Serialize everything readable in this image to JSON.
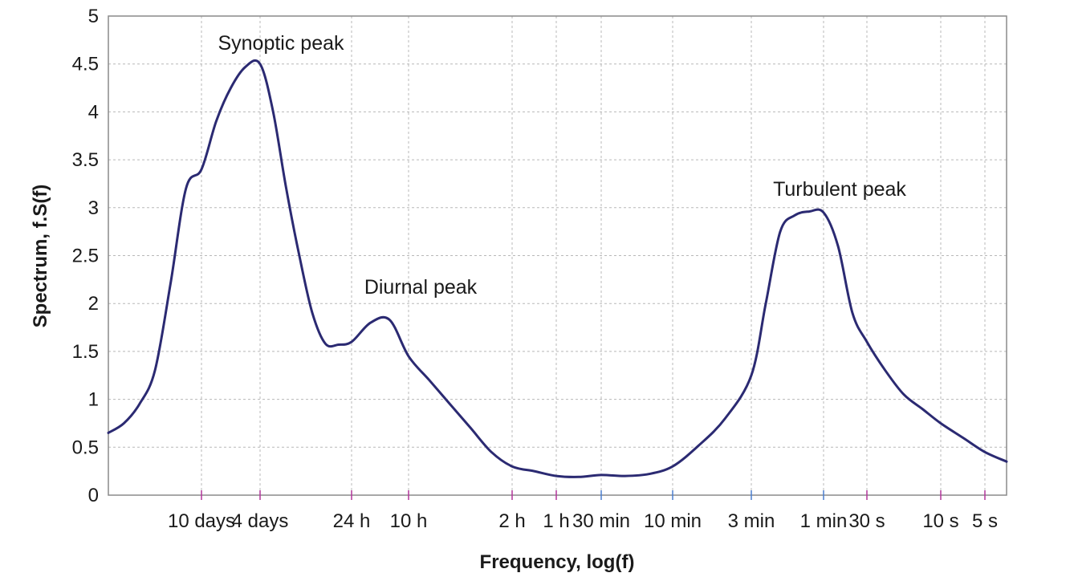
{
  "chart_data": {
    "type": "line",
    "title": "",
    "xlabel": "Frequency, log(f)",
    "ylabel": "Spectrum, f.S(f)",
    "x_scale": "log",
    "ylim": [
      0,
      5
    ],
    "yticks": [
      {
        "value": 0,
        "label": "0"
      },
      {
        "value": 0.5,
        "label": "0.5"
      },
      {
        "value": 1,
        "label": "1"
      },
      {
        "value": 1.5,
        "label": "1.5"
      },
      {
        "value": 2,
        "label": "2"
      },
      {
        "value": 2.5,
        "label": "2.5"
      },
      {
        "value": 3,
        "label": "3"
      },
      {
        "value": 3.5,
        "label": "3.5"
      },
      {
        "value": 4,
        "label": "4"
      },
      {
        "value": 4.5,
        "label": "4.5"
      },
      {
        "value": 5,
        "label": "5"
      }
    ],
    "xticks": [
      "10 days",
      "4 days",
      "24 h",
      "10 h",
      "2 h",
      "1 h",
      "30 min",
      "10 min",
      "3 min",
      "1 min",
      "30 s",
      "10 s",
      "5 s"
    ],
    "grid": true,
    "annotations": [
      {
        "text": "Synoptic peak",
        "at": "4 days"
      },
      {
        "text": "Diurnal peak",
        "at": "10 h"
      },
      {
        "text": "Turbulent peak",
        "at": "1 min"
      }
    ],
    "series": [
      {
        "color": "#2b2a72",
        "points": [
          [
            "",
            0.65
          ],
          [
            "",
            0.75
          ],
          [
            "",
            0.95
          ],
          [
            "",
            1.3
          ],
          [
            "",
            2.2
          ],
          [
            "",
            3.2
          ],
          [
            "10 days",
            3.4
          ],
          [
            "",
            3.9
          ],
          [
            "",
            4.25
          ],
          [
            "",
            4.47
          ],
          [
            "4 days",
            4.5
          ],
          [
            "",
            4.0
          ],
          [
            "",
            3.2
          ],
          [
            "",
            2.5
          ],
          [
            "",
            1.9
          ],
          [
            "",
            1.58
          ],
          [
            "",
            1.57
          ],
          [
            "24 h",
            1.6
          ],
          [
            "",
            1.8
          ],
          [
            "",
            1.83
          ],
          [
            "10 h",
            1.45
          ],
          [
            "",
            1.2
          ],
          [
            "",
            0.95
          ],
          [
            "",
            0.7
          ],
          [
            "",
            0.45
          ],
          [
            "2 h",
            0.3
          ],
          [
            "",
            0.25
          ],
          [
            "1 h",
            0.2
          ],
          [
            "",
            0.19
          ],
          [
            "30 min",
            0.21
          ],
          [
            "",
            0.2
          ],
          [
            "",
            0.22
          ],
          [
            "10 min",
            0.3
          ],
          [
            "",
            0.52
          ],
          [
            "",
            0.8
          ],
          [
            "3 min",
            1.25
          ],
          [
            "",
            2.0
          ],
          [
            "",
            2.75
          ],
          [
            "",
            2.92
          ],
          [
            "",
            2.96
          ],
          [
            "1 min",
            2.95
          ],
          [
            "",
            2.6
          ],
          [
            "",
            1.9
          ],
          [
            "30 s",
            1.6
          ],
          [
            "",
            1.3
          ],
          [
            "",
            1.05
          ],
          [
            "",
            0.9
          ],
          [
            "10 s",
            0.75
          ],
          [
            "",
            0.6
          ],
          [
            "5 s",
            0.45
          ],
          [
            "",
            0.35
          ]
        ]
      }
    ]
  }
}
